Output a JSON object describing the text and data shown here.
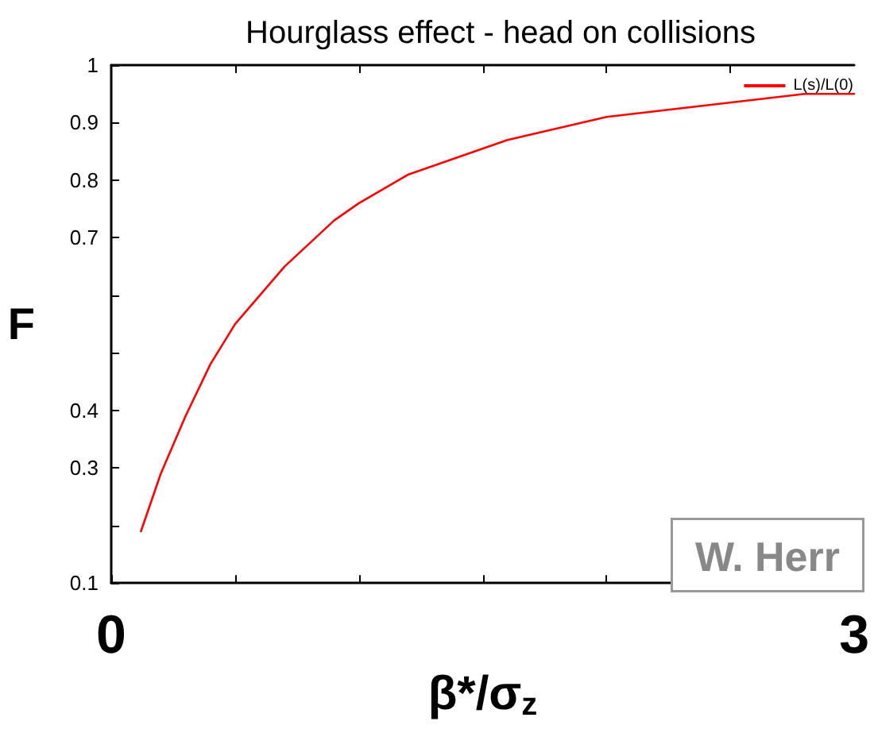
{
  "chart_data": {
    "type": "line",
    "title": "Hourglass effect - head on collisions",
    "xlabel": "β*/σ$_{z}$",
    "ylabel": "F",
    "x": [
      0.12,
      0.2,
      0.3,
      0.4,
      0.5,
      0.6,
      0.7,
      0.8,
      0.9,
      1.0,
      1.2,
      1.4,
      1.6,
      1.8,
      2.0,
      2.2,
      2.4,
      2.6,
      2.8,
      3.0
    ],
    "series": [
      {
        "name": "L(s)/L(0)",
        "color": "#ff0000",
        "values": [
          0.19,
          0.29,
          0.39,
          0.48,
          0.55,
          0.6,
          0.65,
          0.69,
          0.73,
          0.76,
          0.81,
          0.84,
          0.87,
          0.89,
          0.91,
          0.92,
          0.93,
          0.94,
          0.95,
          0.95
        ]
      }
    ],
    "xlim": [
      0,
      3
    ],
    "xticks": [
      0,
      {
        "value": 0.5,
        "label": null
      },
      {
        "value": 1,
        "label": null
      },
      {
        "value": 1.5,
        "label": null
      },
      {
        "value": 2,
        "label": null
      },
      {
        "value": 2.5,
        "label": null
      },
      3
    ],
    "ylim": [
      0.1,
      1
    ],
    "yticks": [
      0.1,
      {
        "value": 0.2,
        "label": null
      },
      0.3,
      0.4,
      {
        "value": 0.5,
        "label": null
      },
      {
        "value": 0.6,
        "label": null
      },
      0.7,
      0.8,
      0.9,
      1
    ],
    "annotations": [
      "W. Herr"
    ],
    "grid": false,
    "legend": "top right",
    "marker": "none",
    "line_style": "solid"
  }
}
